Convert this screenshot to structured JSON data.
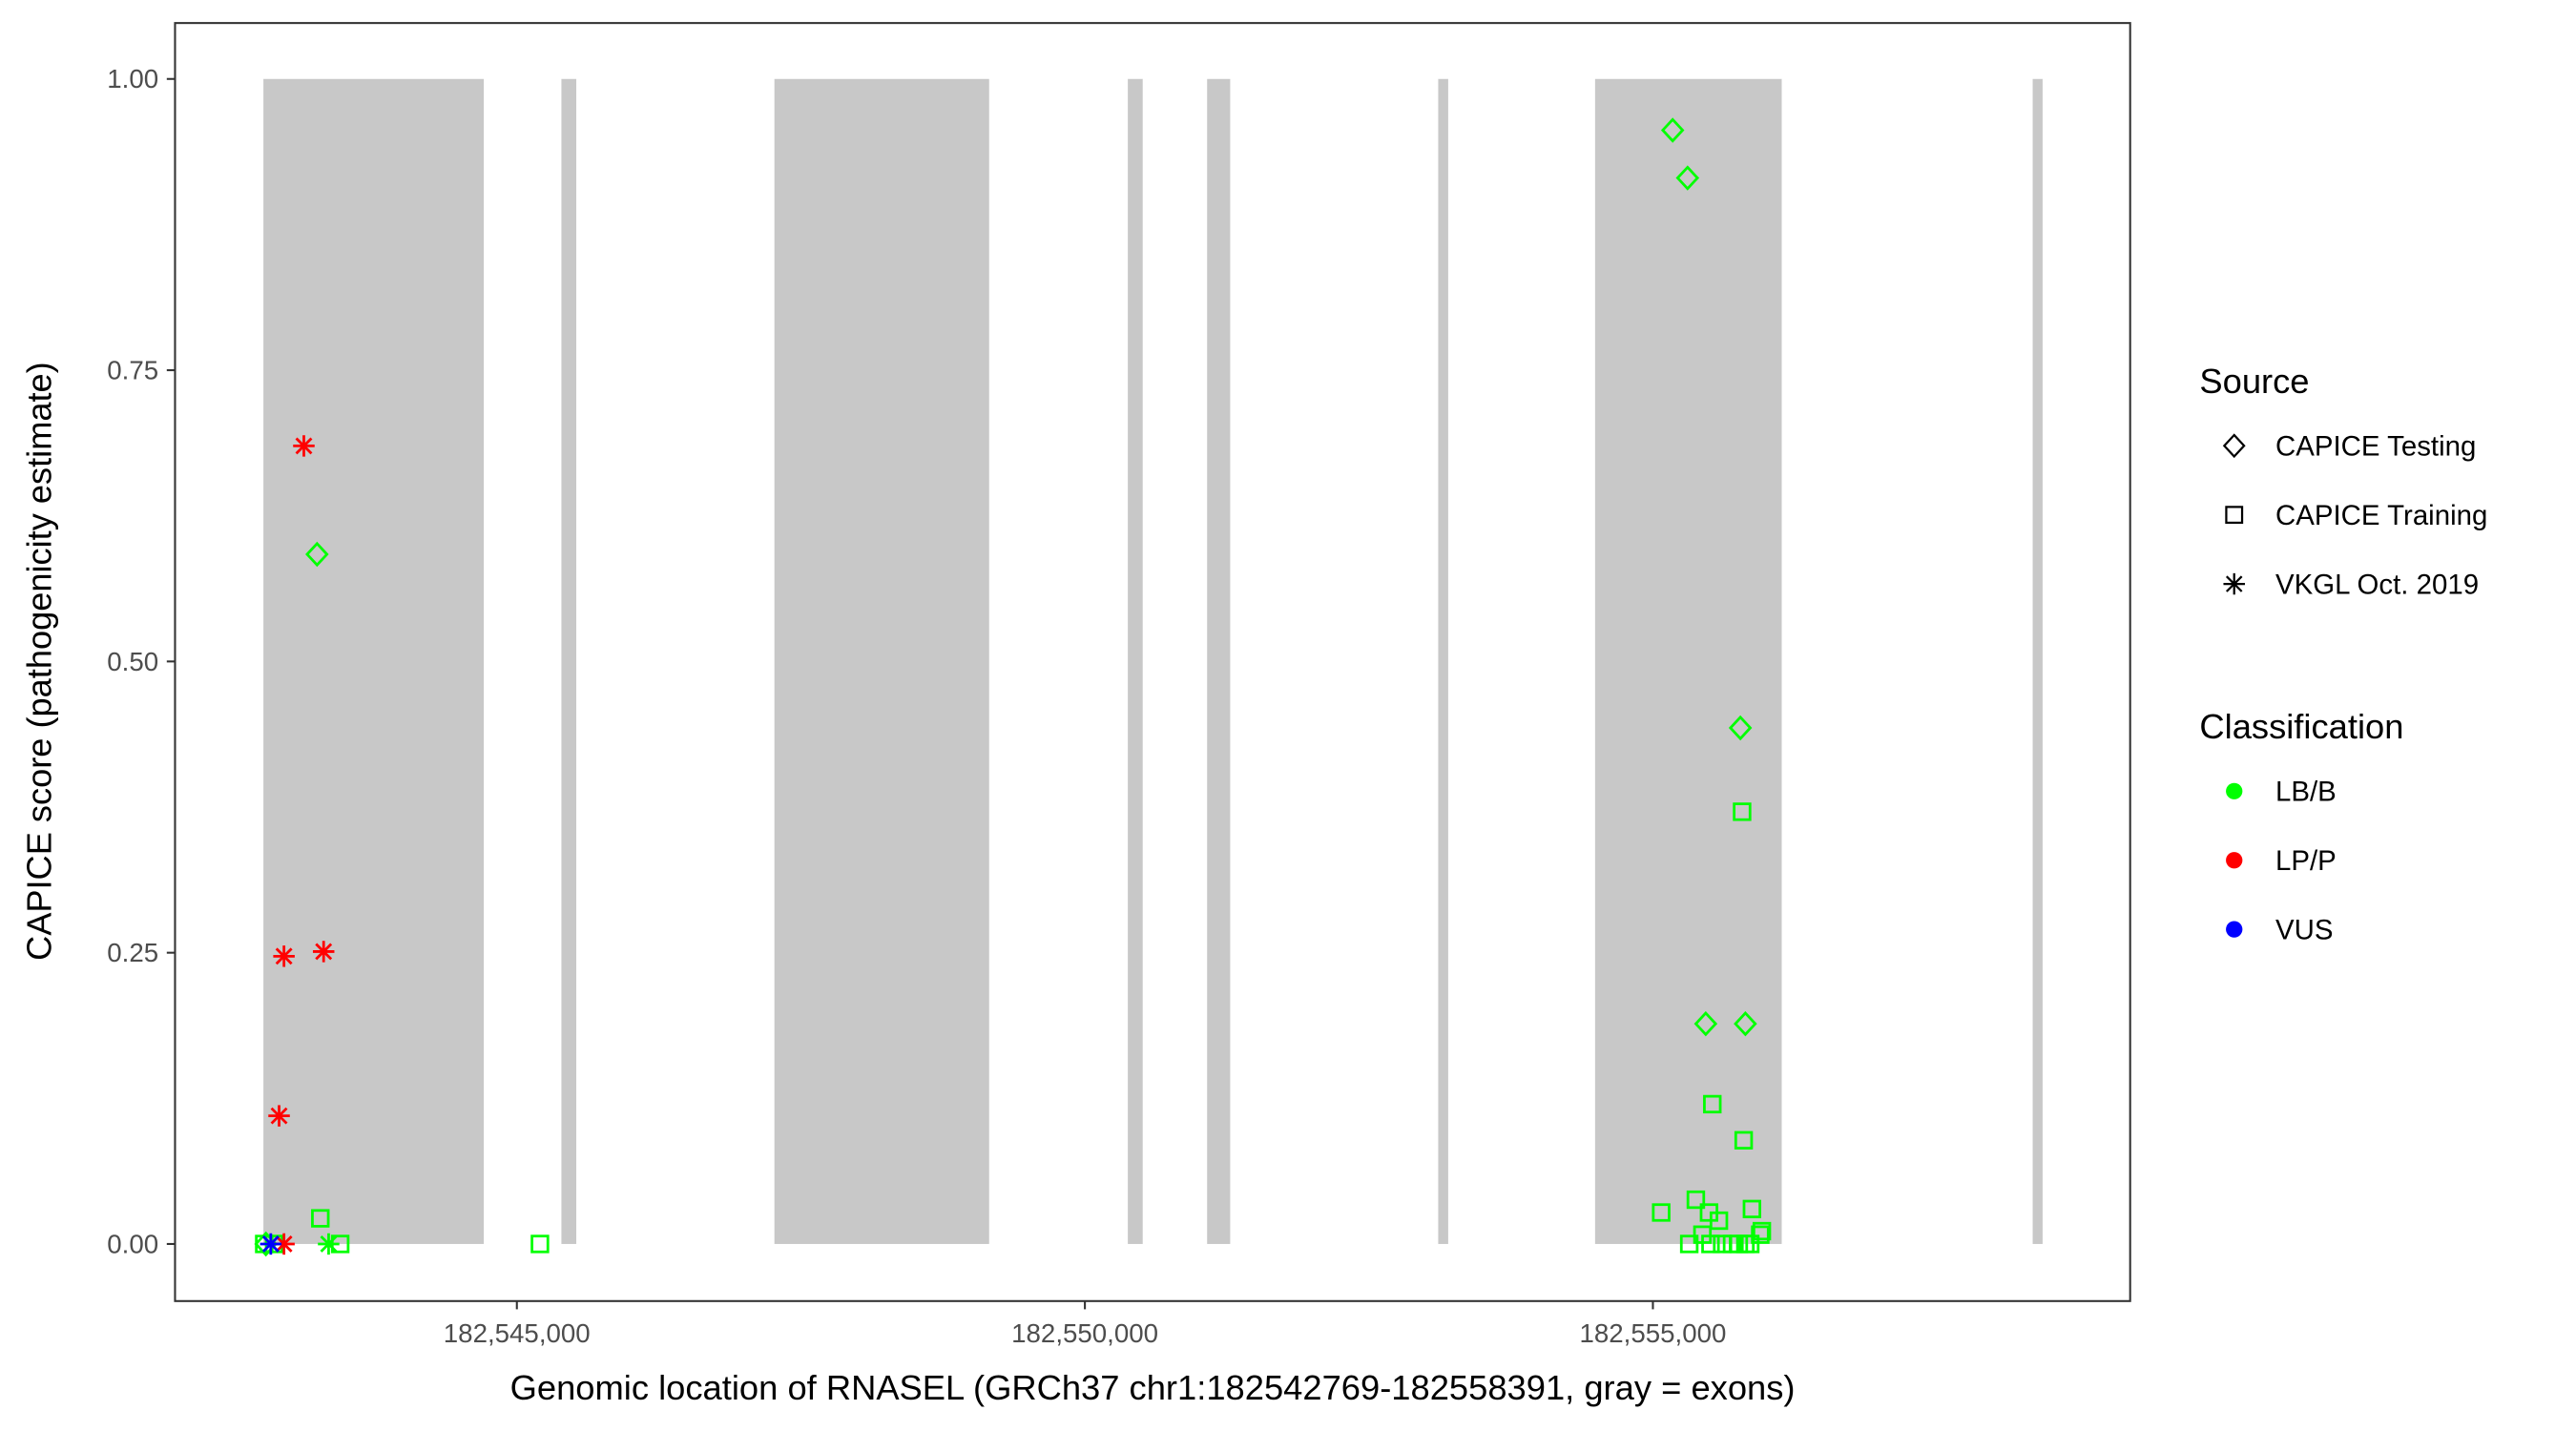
{
  "chart_data": {
    "type": "scatter",
    "xlabel": "Genomic location of RNASEL (GRCh37 chr1:182542769-182558391, gray = exons)",
    "ylabel": "CAPICE score (pathogenicity estimate)",
    "xlim": [
      182541991,
      182559201
    ],
    "ylim": [
      -0.049,
      1.048
    ],
    "x_ticks": [
      182545000,
      182550000,
      182555000
    ],
    "x_tick_labels": [
      "182,545,000",
      "182,550,000",
      "182,555,000"
    ],
    "y_ticks": [
      0,
      0.25,
      0.5,
      0.75,
      1.0
    ],
    "y_tick_labels": [
      "0.00",
      "0.25",
      "0.50",
      "0.75",
      "1.00"
    ],
    "grid": false,
    "exon_color": "#c8c8c8",
    "exon_y_range": [
      0,
      1
    ],
    "exons": [
      [
        182542769,
        182544709
      ],
      [
        182545392,
        182545523
      ],
      [
        182547267,
        182549157
      ],
      [
        182550378,
        182550509
      ],
      [
        182551076,
        182551279
      ],
      [
        182553110,
        182553198
      ],
      [
        182554491,
        182556134
      ],
      [
        182558343,
        182558391
      ]
    ],
    "legend_position": "right",
    "legend": {
      "source_title": "Source",
      "sources": [
        {
          "name": "CAPICE Testing",
          "shape": "diamond"
        },
        {
          "name": "CAPICE Training",
          "shape": "square"
        },
        {
          "name": "VKGL Oct. 2019",
          "shape": "asterisk"
        }
      ],
      "classification_title": "Classification",
      "classes": [
        {
          "name": "LB/B",
          "color": "#00ff00"
        },
        {
          "name": "LP/P",
          "color": "#ff0000"
        },
        {
          "name": "VUS",
          "color": "#0000ff"
        }
      ]
    },
    "points": [
      {
        "x": 182555174,
        "y": 0.956,
        "source": "CAPICE Testing",
        "class": "LB/B"
      },
      {
        "x": 182555305,
        "y": 0.915,
        "source": "CAPICE Testing",
        "class": "LB/B"
      },
      {
        "x": 182543241,
        "y": 0.592,
        "source": "CAPICE Testing",
        "class": "LB/B"
      },
      {
        "x": 182555770,
        "y": 0.443,
        "source": "CAPICE Testing",
        "class": "LB/B"
      },
      {
        "x": 182555465,
        "y": 0.189,
        "source": "CAPICE Testing",
        "class": "LB/B"
      },
      {
        "x": 182555814,
        "y": 0.189,
        "source": "CAPICE Testing",
        "class": "LB/B"
      },
      {
        "x": 182542791,
        "y": 0.0,
        "source": "CAPICE Testing",
        "class": "LB/B"
      },
      {
        "x": 182555785,
        "y": 0.371,
        "source": "CAPICE Training",
        "class": "LB/B"
      },
      {
        "x": 182555523,
        "y": 0.12,
        "source": "CAPICE Training",
        "class": "LB/B"
      },
      {
        "x": 182555799,
        "y": 0.089,
        "source": "CAPICE Training",
        "class": "LB/B"
      },
      {
        "x": 182555073,
        "y": 0.027,
        "source": "CAPICE Training",
        "class": "LB/B"
      },
      {
        "x": 182555378,
        "y": 0.038,
        "source": "CAPICE Training",
        "class": "LB/B"
      },
      {
        "x": 182555872,
        "y": 0.03,
        "source": "CAPICE Training",
        "class": "LB/B"
      },
      {
        "x": 182555494,
        "y": 0.027,
        "source": "CAPICE Training",
        "class": "LB/B"
      },
      {
        "x": 182555581,
        "y": 0.02,
        "source": "CAPICE Training",
        "class": "LB/B"
      },
      {
        "x": 182555436,
        "y": 0.008,
        "source": "CAPICE Training",
        "class": "LB/B"
      },
      {
        "x": 182555959,
        "y": 0.011,
        "source": "CAPICE Training",
        "class": "LB/B"
      },
      {
        "x": 182555945,
        "y": 0.008,
        "source": "CAPICE Training",
        "class": "LB/B"
      },
      {
        "x": 182555320,
        "y": 0.0,
        "source": "CAPICE Training",
        "class": "LB/B"
      },
      {
        "x": 182555507,
        "y": 0.0,
        "source": "CAPICE Training",
        "class": "LB/B"
      },
      {
        "x": 182555610,
        "y": 0.0,
        "source": "CAPICE Training",
        "class": "LB/B"
      },
      {
        "x": 182555697,
        "y": 0.0,
        "source": "CAPICE Training",
        "class": "LB/B"
      },
      {
        "x": 182555756,
        "y": 0.0,
        "source": "CAPICE Training",
        "class": "LB/B"
      },
      {
        "x": 182555814,
        "y": 0.0,
        "source": "CAPICE Training",
        "class": "LB/B"
      },
      {
        "x": 182555857,
        "y": 0.0,
        "source": "CAPICE Training",
        "class": "LB/B"
      },
      {
        "x": 182543270,
        "y": 0.022,
        "source": "CAPICE Training",
        "class": "LB/B"
      },
      {
        "x": 182543445,
        "y": 0.0,
        "source": "CAPICE Training",
        "class": "LB/B"
      },
      {
        "x": 182545203,
        "y": 0.0,
        "source": "CAPICE Training",
        "class": "LB/B"
      },
      {
        "x": 182542776,
        "y": 0.0,
        "source": "CAPICE Training",
        "class": "LB/B"
      },
      {
        "x": 182542863,
        "y": 0.0,
        "source": "CAPICE Training",
        "class": "LB/B"
      },
      {
        "x": 182543125,
        "y": 0.685,
        "source": "VKGL Oct. 2019",
        "class": "LP/P"
      },
      {
        "x": 182542950,
        "y": 0.247,
        "source": "VKGL Oct. 2019",
        "class": "LP/P"
      },
      {
        "x": 182543299,
        "y": 0.251,
        "source": "VKGL Oct. 2019",
        "class": "LP/P"
      },
      {
        "x": 182542907,
        "y": 0.11,
        "source": "VKGL Oct. 2019",
        "class": "LP/P"
      },
      {
        "x": 182542950,
        "y": 0.0,
        "source": "VKGL Oct. 2019",
        "class": "LP/P"
      },
      {
        "x": 182543343,
        "y": 0.0,
        "source": "VKGL Oct. 2019",
        "class": "LB/B"
      },
      {
        "x": 182542834,
        "y": 0.0,
        "source": "VKGL Oct. 2019",
        "class": "VUS"
      }
    ]
  }
}
